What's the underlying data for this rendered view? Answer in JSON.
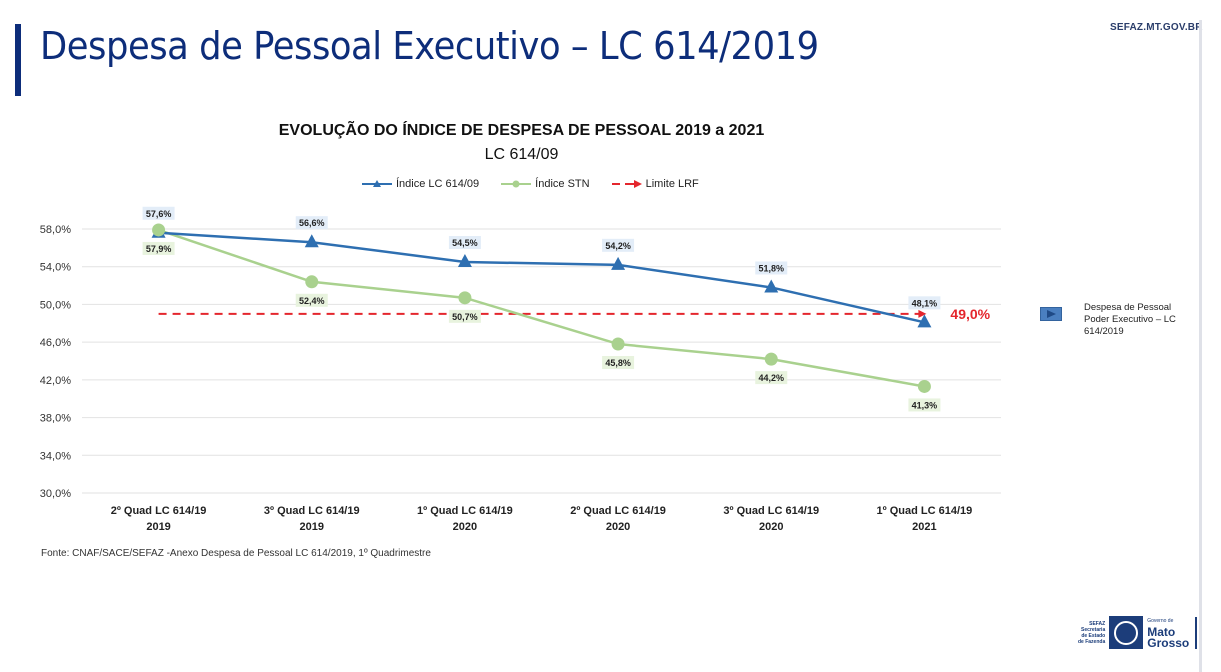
{
  "header": {
    "title": "Despesa de Pessoal Executivo – LC 614/2019",
    "site_url": "SEFAZ.MT.GOV.BR"
  },
  "colors": {
    "title": "#0d2d7a",
    "series_lc": "#2e6fb1",
    "series_stn": "#a9d18e",
    "limit": "#e4262d",
    "label_bg_lc": "#e3edf8",
    "label_bg_stn": "#e8f3de"
  },
  "chart_data": {
    "type": "line",
    "title": "EVOLUÇÃO DO ÍNDICE DE DESPESA DE PESSOAL 2019 a 2021",
    "subtitle": "LC 614/09",
    "xlabel": "",
    "ylabel": "",
    "ylim": [
      30,
      58
    ],
    "yticks": [
      "30,0%",
      "34,0%",
      "38,0%",
      "42,0%",
      "46,0%",
      "50,0%",
      "54,0%",
      "58,0%"
    ],
    "ytick_values": [
      30,
      34,
      38,
      42,
      46,
      50,
      54,
      58
    ],
    "grid": true,
    "legend_position": "top",
    "categories": [
      [
        "2º Quad LC 614/19",
        "2019"
      ],
      [
        "3º Quad LC 614/19",
        "2019"
      ],
      [
        "1º Quad LC 614/19",
        "2020"
      ],
      [
        "2º Quad LC 614/19",
        "2020"
      ],
      [
        "3º Quad LC 614/19",
        "2020"
      ],
      [
        "1º Quad LC 614/19",
        "2021"
      ]
    ],
    "series": [
      {
        "name": "Índice LC 614/09",
        "marker": "triangle",
        "values": [
          57.6,
          56.6,
          54.5,
          54.2,
          51.8,
          48.1
        ],
        "labels": [
          "57,6%",
          "56,6%",
          "54,5%",
          "54,2%",
          "51,8%",
          "48,1%"
        ]
      },
      {
        "name": "Índice STN",
        "marker": "circle",
        "values": [
          57.9,
          52.4,
          50.7,
          45.8,
          44.2,
          41.3
        ],
        "labels": [
          "57,9%",
          "52,4%",
          "50,7%",
          "45,8%",
          "44,2%",
          "41,3%"
        ]
      },
      {
        "name": "Limite LRF",
        "marker": "arrow",
        "style": "dashed",
        "values": [
          49.0,
          49.0,
          49.0,
          49.0,
          49.0,
          49.0
        ],
        "end_label": "49,0%"
      }
    ]
  },
  "source_note": "Fonte: CNAF/SACE/SEFAZ -Anexo Despesa de Pessoal LC 614/2019, 1º Quadrimestre",
  "side_legend": {
    "text": "Despesa de Pessoal Poder Executivo – LC 614/2019"
  },
  "logo": {
    "left_lines": [
      "SEFAZ",
      "Secretaria",
      "de Estado",
      "de Fazenda"
    ],
    "right_small": "Governo de",
    "right_big_1": "Mato",
    "right_big_2": "Grosso"
  }
}
